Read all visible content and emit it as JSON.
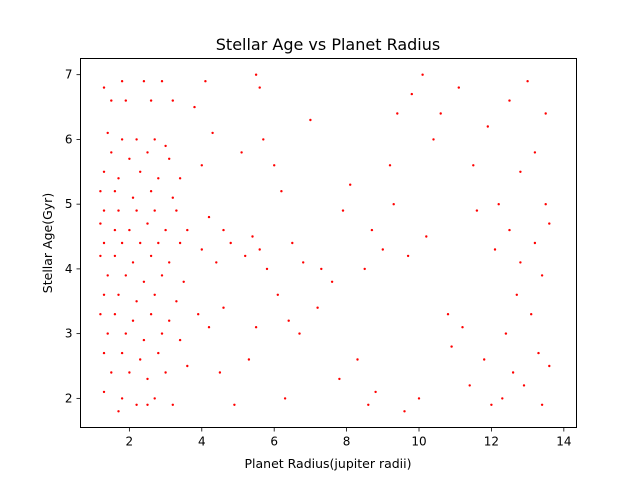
{
  "chart_data": {
    "type": "scatter",
    "title": "Stellar Age vs Planet Radius",
    "xlabel": "Planet Radius(jupiter radii)",
    "ylabel": "Stellar Age(Gyr)",
    "xlim": [
      0.65,
      14.35
    ],
    "ylim": [
      1.55,
      7.25
    ],
    "xticks": [
      2,
      4,
      6,
      8,
      10,
      12,
      14
    ],
    "yticks": [
      2,
      3,
      4,
      5,
      6,
      7
    ],
    "grid": false,
    "legend": "none",
    "marker_color": "#ff0000",
    "series": [
      {
        "points": [
          [
            1.3,
            6.8
          ],
          [
            1.5,
            6.6
          ],
          [
            1.8,
            6.9
          ],
          [
            2.4,
            6.9
          ],
          [
            2.9,
            6.9
          ],
          [
            1.9,
            6.6
          ],
          [
            2.6,
            6.6
          ],
          [
            3.2,
            6.6
          ],
          [
            1.4,
            6.1
          ],
          [
            1.8,
            6.0
          ],
          [
            2.2,
            6.0
          ],
          [
            2.7,
            6.0
          ],
          [
            3.0,
            5.9
          ],
          [
            1.5,
            5.8
          ],
          [
            2.0,
            5.7
          ],
          [
            2.5,
            5.8
          ],
          [
            3.1,
            5.7
          ],
          [
            1.3,
            5.5
          ],
          [
            1.7,
            5.4
          ],
          [
            2.3,
            5.5
          ],
          [
            2.8,
            5.4
          ],
          [
            3.4,
            5.4
          ],
          [
            1.2,
            5.2
          ],
          [
            1.6,
            5.2
          ],
          [
            2.1,
            5.1
          ],
          [
            2.6,
            5.2
          ],
          [
            3.2,
            5.1
          ],
          [
            1.3,
            4.9
          ],
          [
            1.7,
            4.9
          ],
          [
            2.2,
            4.9
          ],
          [
            2.7,
            4.9
          ],
          [
            3.3,
            4.9
          ],
          [
            1.2,
            4.7
          ],
          [
            1.6,
            4.6
          ],
          [
            2.0,
            4.6
          ],
          [
            2.5,
            4.7
          ],
          [
            3.0,
            4.6
          ],
          [
            3.6,
            4.6
          ],
          [
            1.3,
            4.4
          ],
          [
            1.8,
            4.4
          ],
          [
            2.3,
            4.4
          ],
          [
            2.8,
            4.4
          ],
          [
            3.4,
            4.4
          ],
          [
            1.2,
            4.2
          ],
          [
            1.6,
            4.2
          ],
          [
            2.1,
            4.1
          ],
          [
            2.6,
            4.2
          ],
          [
            3.1,
            4.1
          ],
          [
            1.4,
            3.9
          ],
          [
            1.9,
            3.9
          ],
          [
            2.4,
            3.8
          ],
          [
            2.9,
            3.9
          ],
          [
            3.5,
            3.8
          ],
          [
            1.3,
            3.6
          ],
          [
            1.7,
            3.6
          ],
          [
            2.2,
            3.5
          ],
          [
            2.7,
            3.6
          ],
          [
            3.3,
            3.5
          ],
          [
            1.2,
            3.3
          ],
          [
            1.6,
            3.3
          ],
          [
            2.1,
            3.2
          ],
          [
            2.6,
            3.3
          ],
          [
            3.1,
            3.2
          ],
          [
            1.4,
            3.0
          ],
          [
            1.9,
            3.0
          ],
          [
            2.4,
            2.9
          ],
          [
            2.9,
            3.0
          ],
          [
            3.4,
            2.9
          ],
          [
            1.3,
            2.7
          ],
          [
            1.8,
            2.7
          ],
          [
            2.3,
            2.6
          ],
          [
            2.8,
            2.7
          ],
          [
            1.5,
            2.4
          ],
          [
            2.0,
            2.4
          ],
          [
            2.5,
            2.3
          ],
          [
            3.0,
            2.4
          ],
          [
            1.3,
            2.1
          ],
          [
            1.8,
            2.0
          ],
          [
            2.2,
            1.9
          ],
          [
            2.7,
            2.0
          ],
          [
            3.2,
            1.9
          ],
          [
            1.7,
            1.8
          ],
          [
            2.5,
            1.9
          ],
          [
            3.6,
            2.5
          ],
          [
            3.9,
            3.3
          ],
          [
            4.2,
            3.1
          ],
          [
            4.6,
            3.4
          ],
          [
            4.0,
            4.3
          ],
          [
            4.4,
            4.1
          ],
          [
            4.8,
            4.4
          ],
          [
            4.2,
            4.8
          ],
          [
            4.6,
            4.6
          ],
          [
            4.0,
            5.6
          ],
          [
            4.3,
            6.1
          ],
          [
            3.8,
            6.5
          ],
          [
            4.1,
            6.9
          ],
          [
            4.5,
            2.4
          ],
          [
            4.9,
            1.9
          ],
          [
            5.2,
            4.2
          ],
          [
            5.4,
            4.5
          ],
          [
            5.6,
            4.3
          ],
          [
            5.5,
            7.0
          ],
          [
            5.6,
            6.8
          ],
          [
            5.7,
            6.0
          ],
          [
            5.1,
            5.8
          ],
          [
            5.3,
            2.6
          ],
          [
            5.5,
            3.1
          ],
          [
            5.8,
            4.0
          ],
          [
            6.0,
            5.6
          ],
          [
            6.2,
            5.2
          ],
          [
            6.3,
            2.0
          ],
          [
            6.1,
            3.6
          ],
          [
            6.4,
            3.2
          ],
          [
            6.7,
            3.0
          ],
          [
            6.5,
            4.4
          ],
          [
            6.8,
            4.1
          ],
          [
            7.0,
            6.3
          ],
          [
            7.2,
            3.4
          ],
          [
            7.3,
            4.0
          ],
          [
            7.6,
            3.8
          ],
          [
            7.8,
            2.3
          ],
          [
            7.9,
            4.9
          ],
          [
            8.1,
            5.3
          ],
          [
            8.3,
            2.6
          ],
          [
            8.5,
            4.0
          ],
          [
            8.6,
            1.9
          ],
          [
            8.8,
            2.1
          ],
          [
            8.7,
            4.6
          ],
          [
            9.0,
            4.3
          ],
          [
            9.2,
            5.6
          ],
          [
            9.3,
            5.0
          ],
          [
            9.4,
            6.4
          ],
          [
            9.6,
            1.8
          ],
          [
            9.7,
            4.2
          ],
          [
            9.8,
            6.7
          ],
          [
            10.0,
            2.0
          ],
          [
            10.1,
            7.0
          ],
          [
            10.2,
            4.5
          ],
          [
            10.4,
            6.0
          ],
          [
            10.6,
            6.4
          ],
          [
            10.8,
            3.3
          ],
          [
            10.9,
            2.8
          ],
          [
            11.1,
            6.8
          ],
          [
            11.2,
            3.1
          ],
          [
            11.4,
            2.2
          ],
          [
            11.5,
            5.6
          ],
          [
            11.6,
            4.9
          ],
          [
            11.8,
            2.6
          ],
          [
            11.9,
            6.2
          ],
          [
            12.0,
            1.9
          ],
          [
            12.1,
            4.3
          ],
          [
            12.2,
            5.0
          ],
          [
            12.3,
            2.0
          ],
          [
            12.4,
            3.0
          ],
          [
            12.5,
            4.6
          ],
          [
            12.5,
            6.6
          ],
          [
            12.6,
            2.4
          ],
          [
            12.7,
            3.6
          ],
          [
            12.8,
            4.1
          ],
          [
            12.8,
            5.5
          ],
          [
            12.9,
            2.2
          ],
          [
            13.0,
            6.9
          ],
          [
            13.1,
            3.3
          ],
          [
            13.2,
            4.4
          ],
          [
            13.2,
            5.8
          ],
          [
            13.3,
            2.7
          ],
          [
            13.4,
            1.9
          ],
          [
            13.4,
            3.9
          ],
          [
            13.5,
            5.0
          ],
          [
            13.5,
            6.4
          ],
          [
            13.6,
            2.5
          ],
          [
            13.6,
            4.7
          ]
        ]
      }
    ]
  }
}
